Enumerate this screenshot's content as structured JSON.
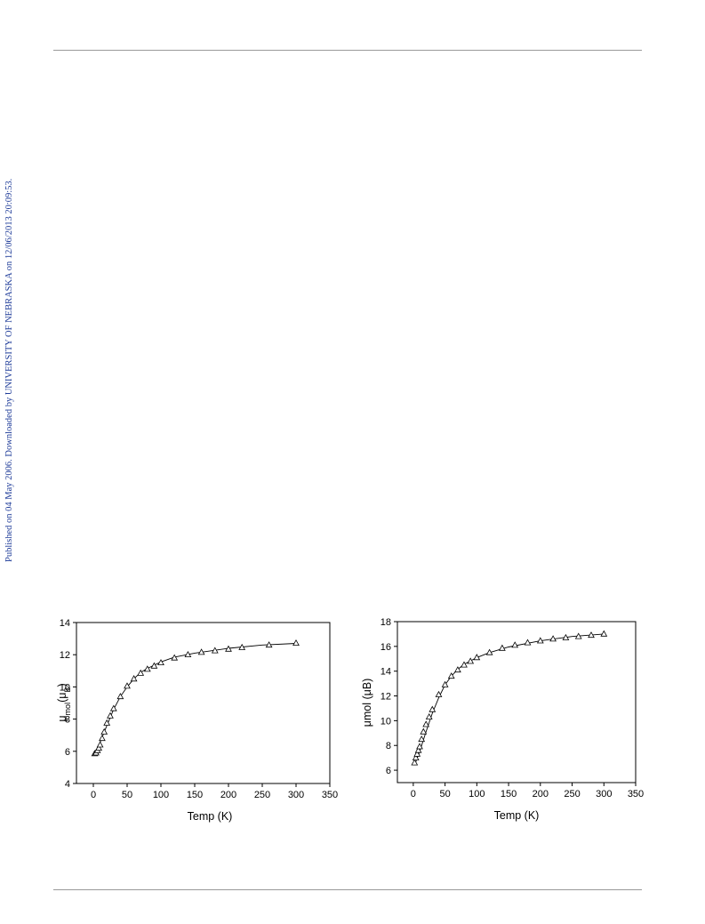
{
  "side_note": "Published on 04 May 2006. Downloaded by UNIVERSITY OF NEBRASKA on 12/06/2013 20:09:53.",
  "chart_data": [
    {
      "type": "scatter",
      "title": "",
      "xlabel": "Temp (K)",
      "ylabel": "μmol(μB)",
      "ylabel_main": "μ",
      "ylabel_sub1": "mol",
      "ylabel_mid": "(μ",
      "ylabel_sub2": "B",
      "ylabel_end": ")",
      "xlim": [
        -25,
        350
      ],
      "ylim": [
        4,
        14
      ],
      "xticks": [
        "0",
        "50",
        "100",
        "150",
        "200",
        "250",
        "300",
        "350"
      ],
      "yticks": [
        "4",
        "6",
        "8",
        "10",
        "12",
        "14"
      ],
      "grid": false,
      "marker": "open-triangle",
      "series": [
        {
          "x": [
            2,
            4,
            6,
            8,
            10,
            13,
            16,
            20,
            25,
            30,
            40,
            50,
            60,
            70,
            80,
            90,
            100,
            120,
            140,
            160,
            180,
            200,
            220,
            260,
            300
          ],
          "y": [
            5.85,
            5.9,
            6.05,
            6.2,
            6.4,
            6.8,
            7.2,
            7.75,
            8.2,
            8.65,
            9.4,
            10.05,
            10.5,
            10.85,
            11.1,
            11.3,
            11.5,
            11.8,
            12.0,
            12.15,
            12.25,
            12.35,
            12.45,
            12.6,
            12.72
          ]
        }
      ],
      "fit": {
        "x": [
          2,
          10,
          20,
          30,
          40,
          50,
          60,
          70,
          80,
          100,
          120,
          150,
          200,
          250,
          300
        ],
        "y": [
          5.75,
          6.55,
          7.6,
          8.6,
          9.4,
          10.0,
          10.5,
          10.9,
          11.15,
          11.55,
          11.85,
          12.1,
          12.4,
          12.6,
          12.7
        ]
      }
    },
    {
      "type": "scatter",
      "title": "",
      "xlabel": "Temp (K)",
      "ylabel": "μmol (μB)",
      "xlim": [
        -25,
        350
      ],
      "ylim": [
        5,
        18
      ],
      "xticks": [
        "0",
        "50",
        "100",
        "150",
        "200",
        "250",
        "300",
        "350"
      ],
      "yticks": [
        "6",
        "8",
        "10",
        "12",
        "14",
        "16",
        "18"
      ],
      "grid": false,
      "marker": "open-triangle",
      "series": [
        {
          "x": [
            2,
            4,
            6,
            8,
            10,
            13,
            16,
            20,
            25,
            30,
            40,
            50,
            60,
            70,
            80,
            90,
            100,
            120,
            140,
            160,
            180,
            200,
            220,
            240,
            260,
            280,
            300
          ],
          "y": [
            6.6,
            7.0,
            7.3,
            7.6,
            7.9,
            8.5,
            9.1,
            9.7,
            10.3,
            10.9,
            12.1,
            12.9,
            13.6,
            14.1,
            14.5,
            14.8,
            15.1,
            15.5,
            15.85,
            16.1,
            16.3,
            16.45,
            16.6,
            16.7,
            16.8,
            16.9,
            17.0
          ]
        }
      ],
      "fit": {
        "x": [
          2,
          10,
          20,
          30,
          40,
          50,
          60,
          70,
          80,
          100,
          120,
          150,
          200,
          250,
          300
        ],
        "y": [
          6.4,
          7.5,
          9.1,
          10.6,
          11.85,
          12.9,
          13.6,
          14.15,
          14.55,
          15.1,
          15.5,
          15.95,
          16.45,
          16.8,
          17.0
        ]
      }
    }
  ]
}
